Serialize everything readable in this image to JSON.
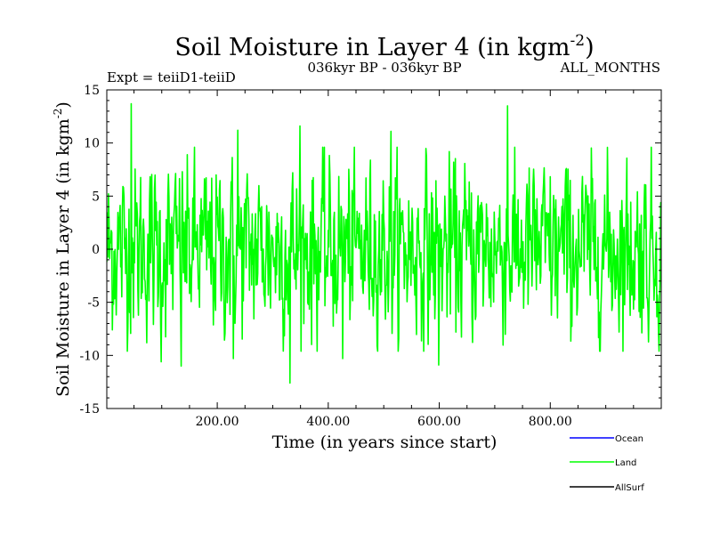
{
  "chart_data": {
    "type": "line",
    "title": "Soil Moisture in Layer 4 (in kgm",
    "title_superscript": "-2",
    "title_suffix": ")",
    "subtitle_left": "Expt = teiiD1-teiiD",
    "subtitle_center": "036kyr BP - 036kyr BP",
    "subtitle_right": "ALL_MONTHS",
    "xlabel": "Time (in years since start)",
    "ylabel": "Soil Moisture in Layer 4 (in kgm",
    "ylabel_superscript": "-2",
    "ylabel_suffix": ")",
    "xlim": [
      1,
      1000
    ],
    "ylim": [
      -15,
      15
    ],
    "x_ticks": [
      200,
      400,
      600,
      800
    ],
    "x_tick_labels": [
      "200.00",
      "400.00",
      "600.00",
      "800.00"
    ],
    "y_ticks": [
      -15,
      -10,
      -5,
      0,
      5,
      10,
      15
    ],
    "y_tick_labels": [
      "-15",
      "-10",
      "-5",
      "0",
      "5",
      "10",
      "15"
    ],
    "grid": false,
    "legend_position": "bottom-right",
    "legend": [
      {
        "name": "Ocean",
        "color": "#0000ff"
      },
      {
        "name": "Land",
        "color": "#00ff00"
      },
      {
        "name": "AllSurf",
        "color": "#000000"
      }
    ],
    "series": [
      {
        "name": "Land",
        "color": "#00ff00",
        "x_start": 1,
        "x_step": 1,
        "count": 1000,
        "std": 4.0,
        "extremes": [
          {
            "x": 45,
            "y": 13.7
          },
          {
            "x": 723,
            "y": 13.5
          },
          {
            "x": 237,
            "y": 11.2
          },
          {
            "x": 349,
            "y": 11.6
          },
          {
            "x": 513,
            "y": 11.1
          },
          {
            "x": 135,
            "y": -11.0
          },
          {
            "x": 99,
            "y": -10.6
          },
          {
            "x": 229,
            "y": -10.3
          },
          {
            "x": 331,
            "y": -12.6
          },
          {
            "x": 426,
            "y": -10.3
          },
          {
            "x": 599,
            "y": -10.9
          }
        ]
      }
    ]
  }
}
